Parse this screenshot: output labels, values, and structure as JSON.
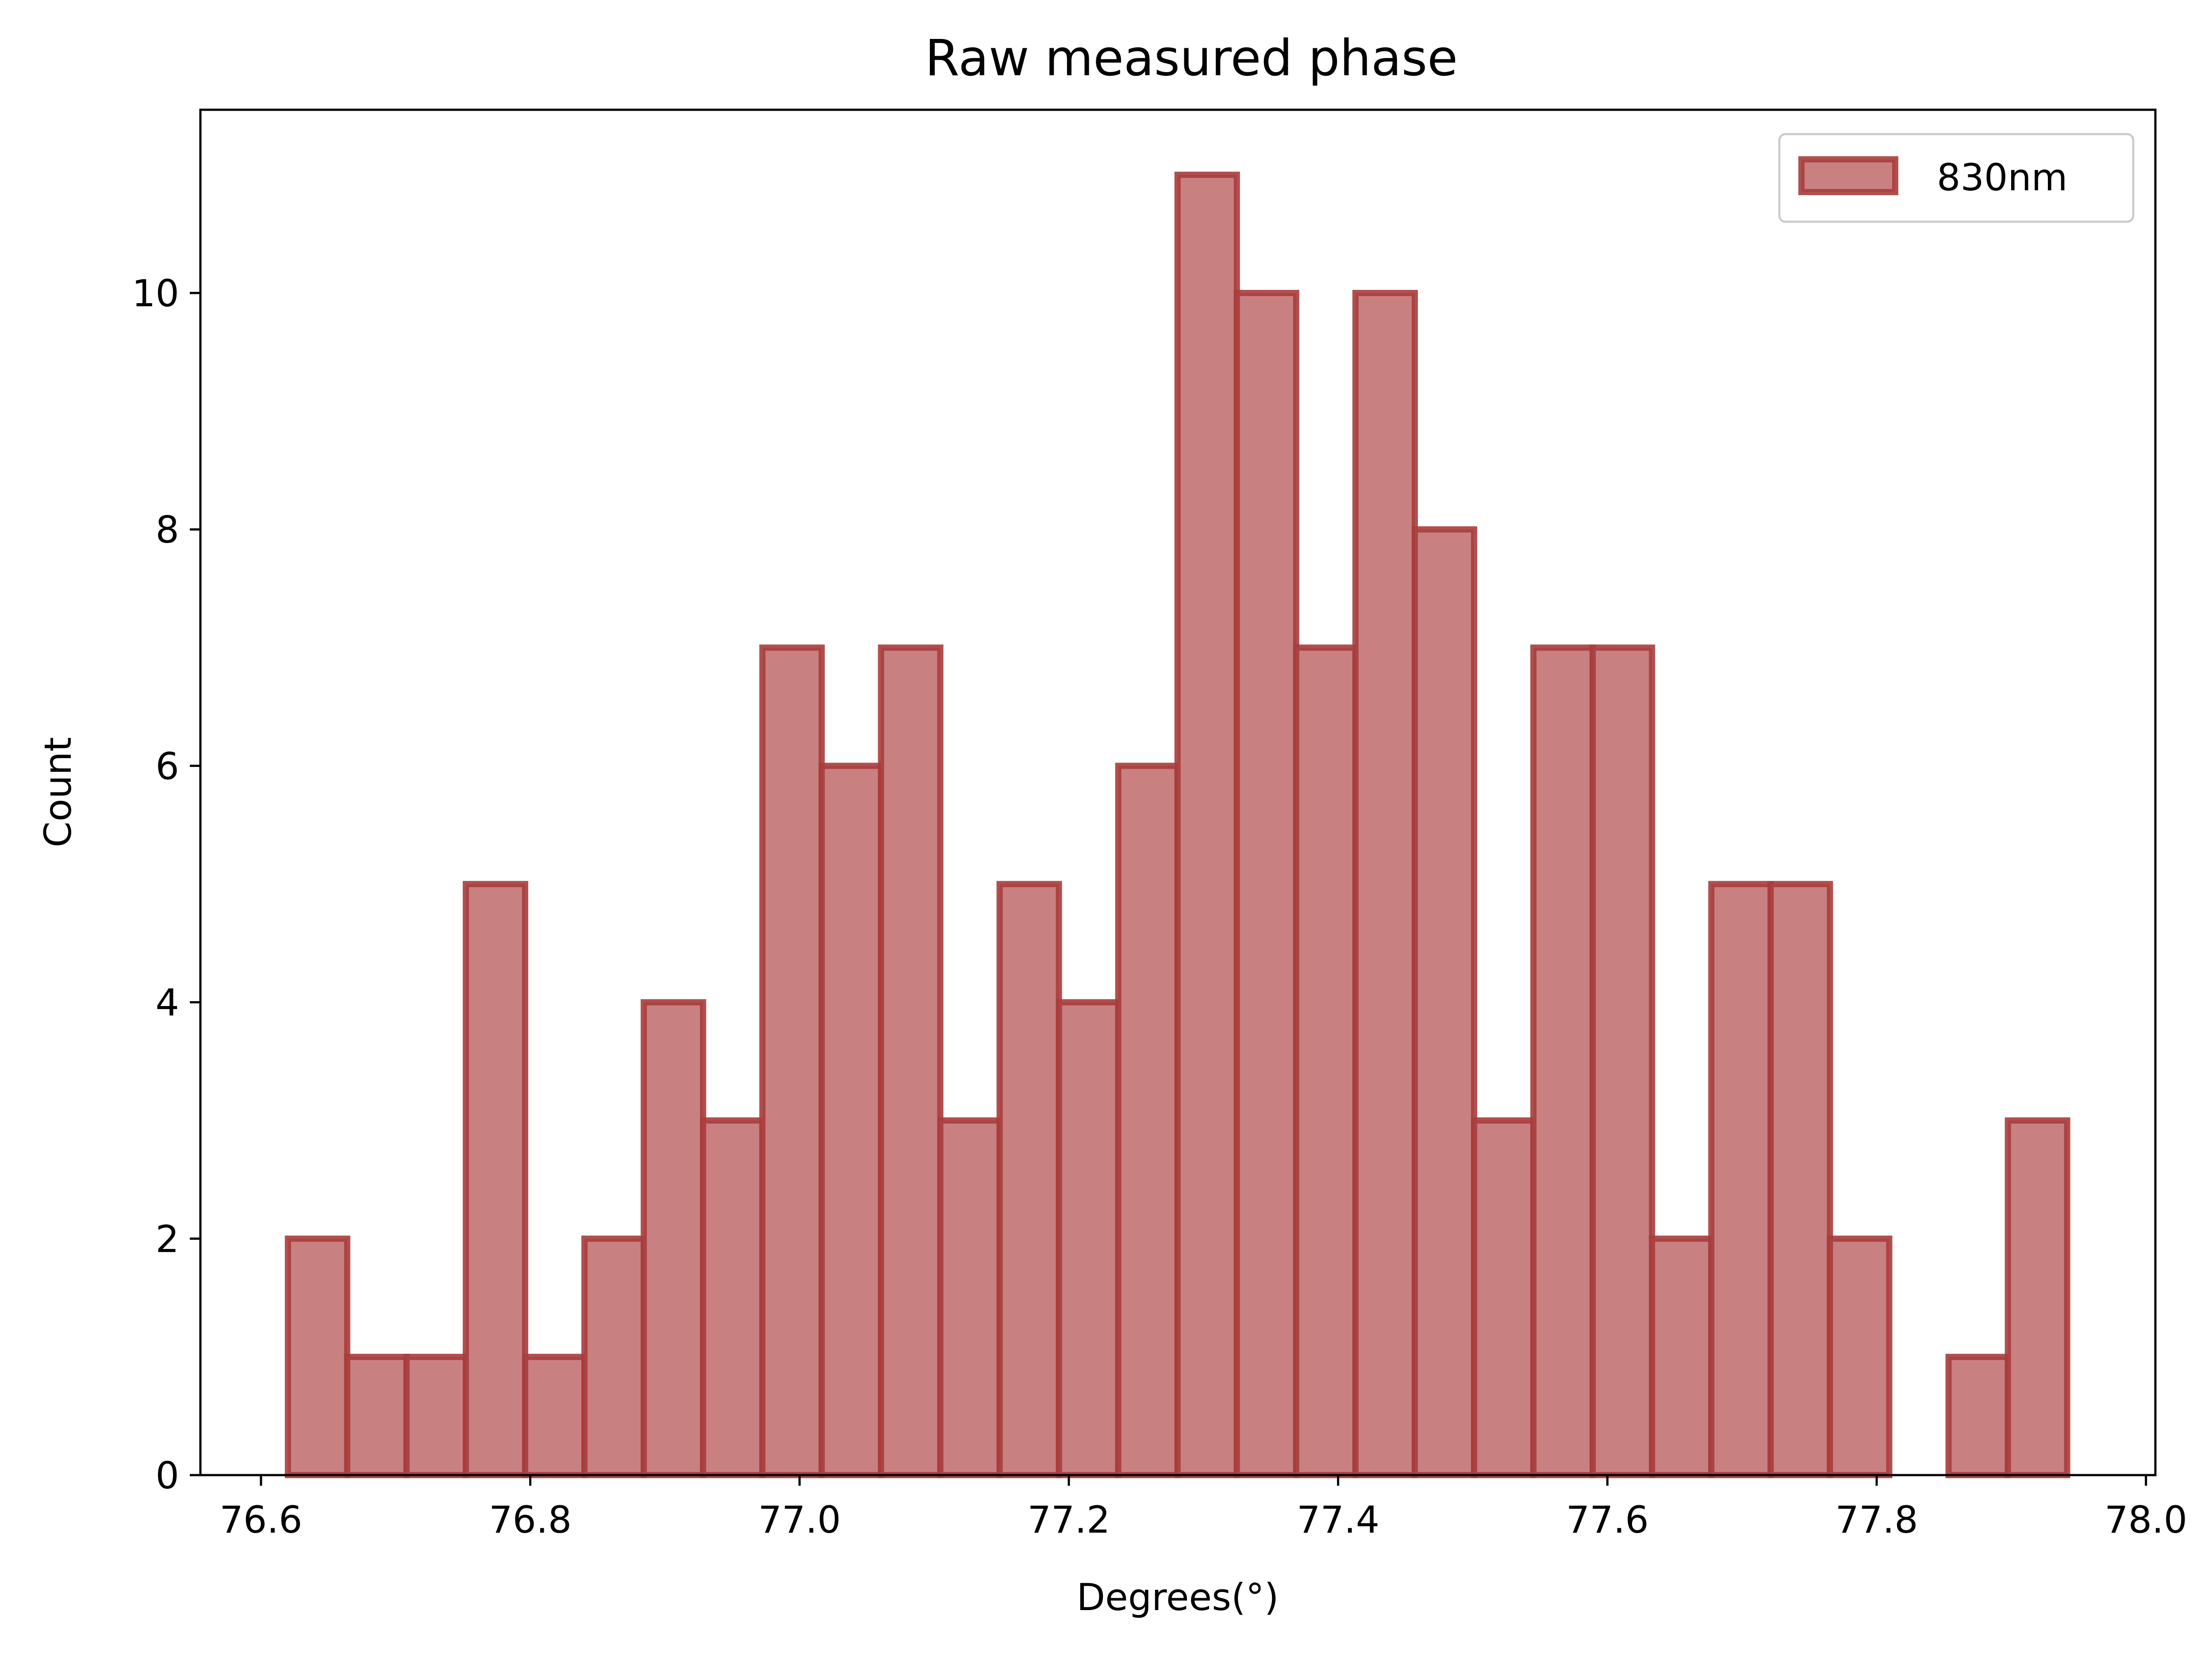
{
  "chart_data": {
    "type": "bar",
    "title": "Raw measured phase",
    "xlabel": "Degrees(°)",
    "ylabel": "Count",
    "xlim": [
      76.555,
      78.007
    ],
    "ylim": [
      0,
      11.55
    ],
    "xticks": [
      "76.6",
      "76.8",
      "77.0",
      "77.2",
      "77.4",
      "77.6",
      "77.8",
      "78.0"
    ],
    "xtick_values": [
      76.6,
      76.8,
      77.0,
      77.2,
      77.4,
      77.6,
      77.8,
      78.0
    ],
    "yticks": [
      "0",
      "2",
      "4",
      "6",
      "8",
      "10"
    ],
    "ytick_values": [
      0,
      2,
      4,
      6,
      8,
      10
    ],
    "grid": false,
    "legend": "top-right",
    "bin_start": 76.62,
    "bin_width": 0.04405,
    "series": [
      {
        "name": "830nm",
        "values": [
          2,
          1,
          1,
          5,
          1,
          2,
          4,
          3,
          7,
          6,
          7,
          3,
          5,
          4,
          6,
          11,
          10,
          7,
          10,
          8,
          3,
          7,
          7,
          2,
          5,
          5,
          2,
          0,
          1,
          3
        ]
      }
    ],
    "colors": {
      "fill": "#C98080",
      "edge": "#A83C3C",
      "edge_opacity": 0.9
    }
  }
}
